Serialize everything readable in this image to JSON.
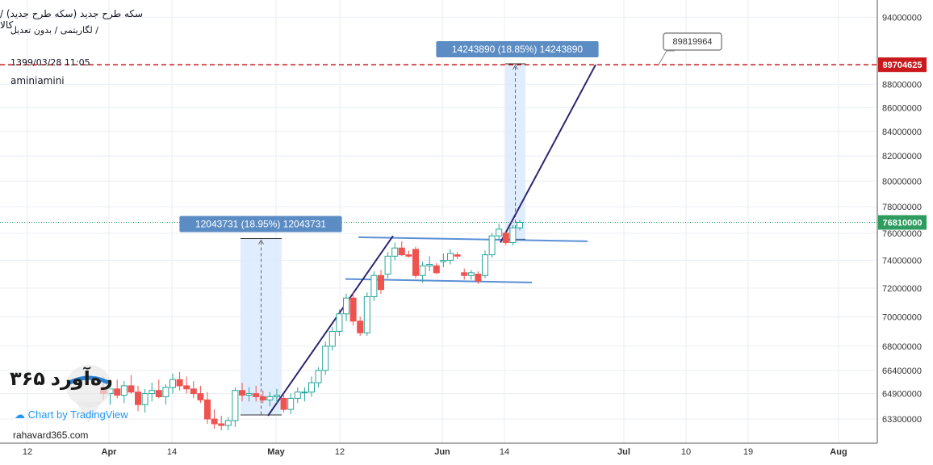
{
  "header": {
    "line1": "سکه طرح جدید (سکه طرح جدید) / کالا",
    "line2": "لگاریتمی / بدون تعدیل /",
    "line3": "1399/03/28 11:05",
    "line4": "aminiamini"
  },
  "branding": {
    "logo_text": "ره‌آورد ۳۶۵",
    "site": "rahavard365.com",
    "tv_label": "Chart by TradingView",
    "tv_icon": "tradingview-logo-icon",
    "rahavard_icon": "rahavard-balloon-icon"
  },
  "colors": {
    "up": "#26a69a",
    "down": "#ef5350",
    "grid": "#e9edf2",
    "trend": "#2d2670",
    "channel": "#5b8fd6",
    "measure_fill": "#dbeafe",
    "measure_label_bg": "#5b8cc4",
    "current_price": "#2e9c5e",
    "target_line": "#c9191c"
  },
  "chart_data": {
    "type": "candlestick",
    "x_ticks": [
      "12",
      "Apr",
      "14",
      "May",
      "12",
      "Jun",
      "14",
      "Jul",
      "10",
      "19",
      "Aug"
    ],
    "y_ticks": [
      63300000,
      64900000,
      66400000,
      68000000,
      70000000,
      72000000,
      74000000,
      76000000,
      78000000,
      80000000,
      82000000,
      84000000,
      86000000,
      88000000,
      94000000
    ],
    "ylim": [
      62500000,
      95000000
    ],
    "scale": "log",
    "grid": true,
    "candles": [
      {
        "o": 65300000,
        "h": 66000000,
        "l": 64500000,
        "c": 64900000
      },
      {
        "o": 64900000,
        "h": 65600000,
        "l": 64200000,
        "c": 65200000
      },
      {
        "o": 65200000,
        "h": 65800000,
        "l": 64600000,
        "c": 64800000
      },
      {
        "o": 64800000,
        "h": 65700000,
        "l": 64300000,
        "c": 65400000
      },
      {
        "o": 65400000,
        "h": 66100000,
        "l": 64900000,
        "c": 65000000
      },
      {
        "o": 65000000,
        "h": 65400000,
        "l": 63800000,
        "c": 64200000
      },
      {
        "o": 64200000,
        "h": 65200000,
        "l": 63700000,
        "c": 64900000
      },
      {
        "o": 64900000,
        "h": 65600000,
        "l": 64400000,
        "c": 65100000
      },
      {
        "o": 65100000,
        "h": 65800000,
        "l": 64600000,
        "c": 64700000
      },
      {
        "o": 64700000,
        "h": 65500000,
        "l": 64200000,
        "c": 65300000
      },
      {
        "o": 65300000,
        "h": 66200000,
        "l": 64900000,
        "c": 65800000
      },
      {
        "o": 65800000,
        "h": 66300000,
        "l": 65100000,
        "c": 65400000
      },
      {
        "o": 65400000,
        "h": 66000000,
        "l": 64900000,
        "c": 65200000
      },
      {
        "o": 65200000,
        "h": 65700000,
        "l": 64600000,
        "c": 64900000
      },
      {
        "o": 64900000,
        "h": 65400000,
        "l": 64300000,
        "c": 64500000
      },
      {
        "o": 64500000,
        "h": 65000000,
        "l": 63000000,
        "c": 63300000
      },
      {
        "o": 63300000,
        "h": 63900000,
        "l": 62700000,
        "c": 63000000
      },
      {
        "o": 63000000,
        "h": 63500000,
        "l": 62600000,
        "c": 62900000
      },
      {
        "o": 62900000,
        "h": 63400000,
        "l": 62600000,
        "c": 63200000
      },
      {
        "o": 63200000,
        "h": 65300000,
        "l": 62800000,
        "c": 65100000
      },
      {
        "o": 65100000,
        "h": 65600000,
        "l": 64400000,
        "c": 64800000
      },
      {
        "o": 64800000,
        "h": 65300000,
        "l": 64400000,
        "c": 64900000
      },
      {
        "o": 64900000,
        "h": 65400000,
        "l": 64400000,
        "c": 64700000
      },
      {
        "o": 64700000,
        "h": 65100000,
        "l": 64300000,
        "c": 64500000
      },
      {
        "o": 64500000,
        "h": 65000000,
        "l": 64100000,
        "c": 64700000
      },
      {
        "o": 64700000,
        "h": 65200000,
        "l": 64300000,
        "c": 64800000
      },
      {
        "o": 64600000,
        "h": 64900000,
        "l": 63700000,
        "c": 63900000
      },
      {
        "o": 63900000,
        "h": 64900000,
        "l": 63600000,
        "c": 64600000
      },
      {
        "o": 64600000,
        "h": 65300000,
        "l": 64300000,
        "c": 65000000
      },
      {
        "o": 65000000,
        "h": 65300000,
        "l": 64400000,
        "c": 65000000
      },
      {
        "o": 65000000,
        "h": 66000000,
        "l": 64700000,
        "c": 65600000
      },
      {
        "o": 65600000,
        "h": 66600000,
        "l": 65300000,
        "c": 66400000
      },
      {
        "o": 66400000,
        "h": 68300000,
        "l": 66100000,
        "c": 68000000
      },
      {
        "o": 68000000,
        "h": 69300000,
        "l": 67700000,
        "c": 69000000
      },
      {
        "o": 69000000,
        "h": 70500000,
        "l": 68700000,
        "c": 70200000
      },
      {
        "o": 70200000,
        "h": 71600000,
        "l": 69700000,
        "c": 71300000
      },
      {
        "o": 71300000,
        "h": 71700000,
        "l": 69400000,
        "c": 69700000
      },
      {
        "o": 69700000,
        "h": 70000000,
        "l": 68700000,
        "c": 68900000
      },
      {
        "o": 68900000,
        "h": 71700000,
        "l": 68700000,
        "c": 71400000
      },
      {
        "o": 71400000,
        "h": 73200000,
        "l": 71100000,
        "c": 72900000
      },
      {
        "o": 72900000,
        "h": 73300000,
        "l": 71600000,
        "c": 71900000
      },
      {
        "o": 73000000,
        "h": 74600000,
        "l": 72700000,
        "c": 74300000
      },
      {
        "o": 74300000,
        "h": 75300000,
        "l": 74000000,
        "c": 74900000
      },
      {
        "o": 74900000,
        "h": 75400000,
        "l": 74300000,
        "c": 74400000
      },
      {
        "o": 74400000,
        "h": 74700000,
        "l": 74200000,
        "c": 74300000
      },
      {
        "o": 74800000,
        "h": 75000000,
        "l": 72700000,
        "c": 72900000
      },
      {
        "o": 72900000,
        "h": 73900000,
        "l": 72400000,
        "c": 73600000
      },
      {
        "o": 73600000,
        "h": 74300000,
        "l": 73200000,
        "c": 73700000
      },
      {
        "o": 73600000,
        "h": 73800000,
        "l": 73000000,
        "c": 73100000
      },
      {
        "o": 73900000,
        "h": 74500000,
        "l": 73500000,
        "c": 74000000
      },
      {
        "o": 74000000,
        "h": 74800000,
        "l": 73700000,
        "c": 74500000
      },
      {
        "o": 74400000,
        "h": 74600000,
        "l": 74100000,
        "c": 74300000
      },
      {
        "o": 73100000,
        "h": 73400000,
        "l": 72600000,
        "c": 72900000
      },
      {
        "o": 72900000,
        "h": 73300000,
        "l": 72600000,
        "c": 73100000
      },
      {
        "o": 73000000,
        "h": 73200000,
        "l": 72300000,
        "c": 72500000
      },
      {
        "o": 72900000,
        "h": 74700000,
        "l": 72700000,
        "c": 74400000
      },
      {
        "o": 74400000,
        "h": 76000000,
        "l": 74200000,
        "c": 75800000
      },
      {
        "o": 75800000,
        "h": 76700000,
        "l": 75500000,
        "c": 76300000
      },
      {
        "o": 76000000,
        "h": 76100000,
        "l": 75100000,
        "c": 75300000
      },
      {
        "o": 75300000,
        "h": 76600000,
        "l": 75100000,
        "c": 76400000
      },
      {
        "o": 76400000,
        "h": 77000000,
        "l": 76200000,
        "c": 76810000
      }
    ],
    "current_price": {
      "label": "76810000",
      "value": 76810000
    },
    "target_price": {
      "label": "89704625",
      "value": 89704625
    },
    "callout_label": "89819964",
    "measurements": [
      {
        "label": "12043731 (18.95%) 12043731",
        "from": 63550000,
        "to": 75600000
      },
      {
        "label": "14243890 (18.85%) 14243890",
        "from": 75550000,
        "to": 89790000
      }
    ]
  }
}
